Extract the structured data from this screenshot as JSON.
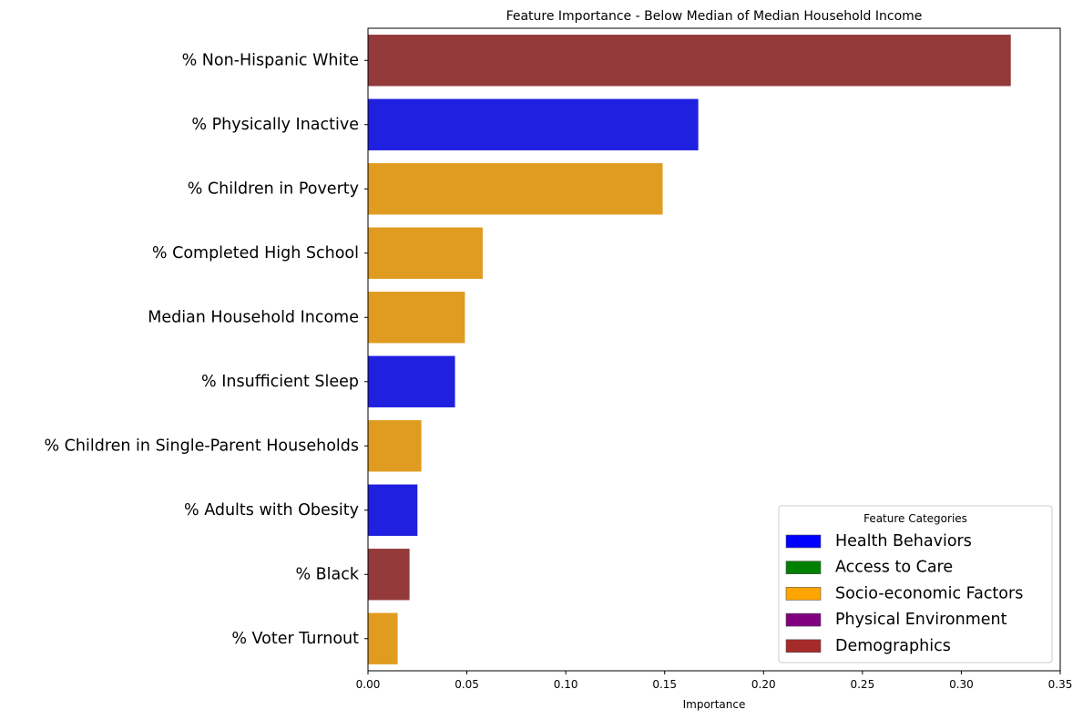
{
  "chart_data": {
    "type": "bar",
    "orientation": "horizontal",
    "title": "Feature Importance - Below Median of Median Household Income",
    "xlabel": "Importance",
    "ylabel": "",
    "xlim": [
      0,
      0.35
    ],
    "xticks": [
      "0.00",
      "0.05",
      "0.10",
      "0.15",
      "0.20",
      "0.25",
      "0.30",
      "0.35"
    ],
    "grid": false,
    "categories": [
      "% Non-Hispanic White",
      "% Physically Inactive",
      "% Children in Poverty",
      "% Completed High School",
      "Median Household Income",
      "% Insufficient Sleep",
      "% Children in Single-Parent Households",
      "% Adults with Obesity",
      "% Black",
      "% Voter Turnout"
    ],
    "values": [
      0.325,
      0.167,
      0.149,
      0.058,
      0.049,
      0.044,
      0.027,
      0.025,
      0.021,
      0.015
    ],
    "bar_categories": [
      "Demographics",
      "Health Behaviors",
      "Socio-economic Factors",
      "Socio-economic Factors",
      "Socio-economic Factors",
      "Health Behaviors",
      "Socio-economic Factors",
      "Health Behaviors",
      "Demographics",
      "Socio-economic Factors"
    ],
    "bar_colors": [
      "#943a3a",
      "#2020e0",
      "#e09c20",
      "#e09c20",
      "#e09c20",
      "#2020e0",
      "#e09c20",
      "#2020e0",
      "#943a3a",
      "#e09c20"
    ],
    "legend": {
      "title": "Feature Categories",
      "placement": "lower-right",
      "entries": [
        {
          "label": "Health Behaviors",
          "color": "#0000ff"
        },
        {
          "label": "Access to Care",
          "color": "#008000"
        },
        {
          "label": "Socio-economic Factors",
          "color": "#ffa500"
        },
        {
          "label": "Physical Environment",
          "color": "#800080"
        },
        {
          "label": "Demographics",
          "color": "#a52a2a"
        }
      ]
    }
  }
}
